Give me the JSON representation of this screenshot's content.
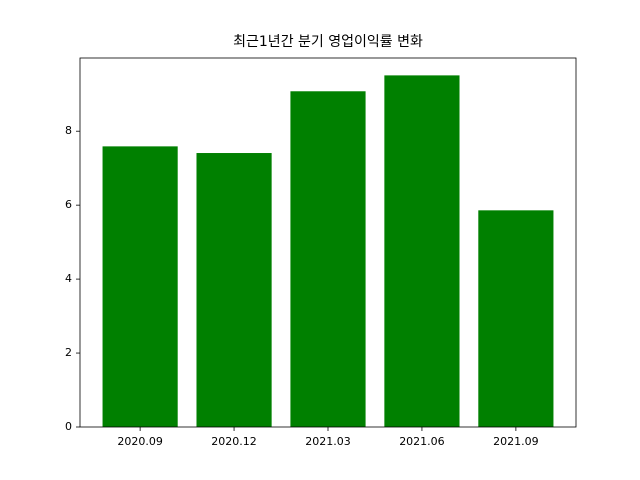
{
  "chart_data": {
    "type": "bar",
    "title": "최근1년간 분기 영업이익률 변화",
    "categories": [
      "2020.09",
      "2020.12",
      "2021.03",
      "2021.06",
      "2021.09"
    ],
    "values": [
      7.59,
      7.41,
      9.08,
      9.51,
      5.86
    ],
    "color": "#008000",
    "ylim": [
      0,
      9.98
    ],
    "yticks": [
      0,
      2,
      4,
      6,
      8
    ],
    "grid": false
  }
}
